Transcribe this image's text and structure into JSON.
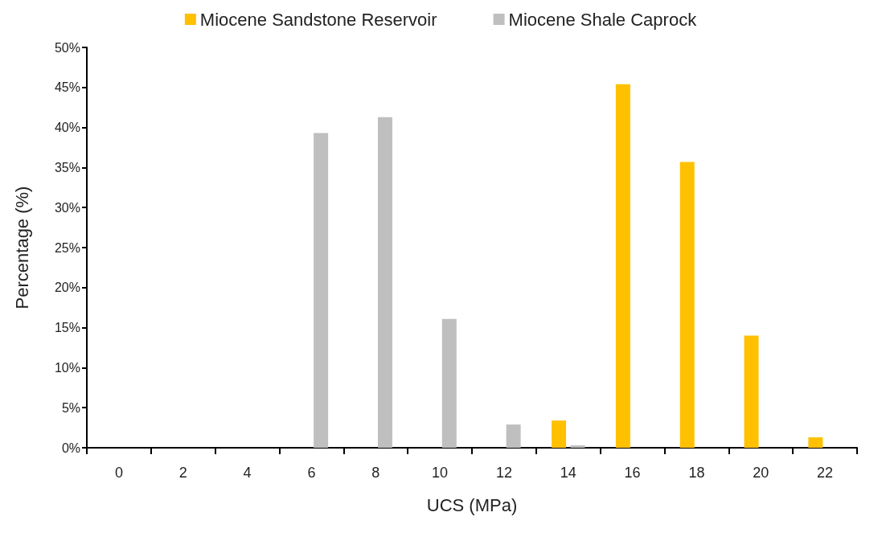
{
  "chart_data": {
    "type": "bar",
    "xlabel": "UCS (MPa)",
    "ylabel": "Percentage (%)",
    "categories": [
      "0",
      "2",
      "4",
      "6",
      "8",
      "10",
      "12",
      "14",
      "16",
      "18",
      "20",
      "22"
    ],
    "series": [
      {
        "name": "Miocene Sandstone Reservoir",
        "color": "#ffc000",
        "values": [
          0,
          0,
          0,
          0,
          0,
          0,
          0,
          3.4,
          45.4,
          35.7,
          14.0,
          1.3
        ]
      },
      {
        "name": "Miocene Shale Caprock",
        "color": "#bfbfbf",
        "values": [
          0,
          0,
          0,
          39.3,
          41.3,
          16.1,
          2.9,
          0.3,
          0,
          0,
          0,
          0
        ]
      }
    ],
    "ylim": [
      0,
      50
    ],
    "yticks": [
      {
        "value": 0,
        "label": "0%"
      },
      {
        "value": 5,
        "label": "5%"
      },
      {
        "value": 10,
        "label": "10%"
      },
      {
        "value": 15,
        "label": "15%"
      },
      {
        "value": 20,
        "label": "20%"
      },
      {
        "value": 25,
        "label": "25%"
      },
      {
        "value": 30,
        "label": "30%"
      },
      {
        "value": 35,
        "label": "35%"
      },
      {
        "value": 40,
        "label": "40%"
      },
      {
        "value": 45,
        "label": "45%"
      },
      {
        "value": 50,
        "label": "50%"
      }
    ],
    "grid": false,
    "legend": "top"
  }
}
